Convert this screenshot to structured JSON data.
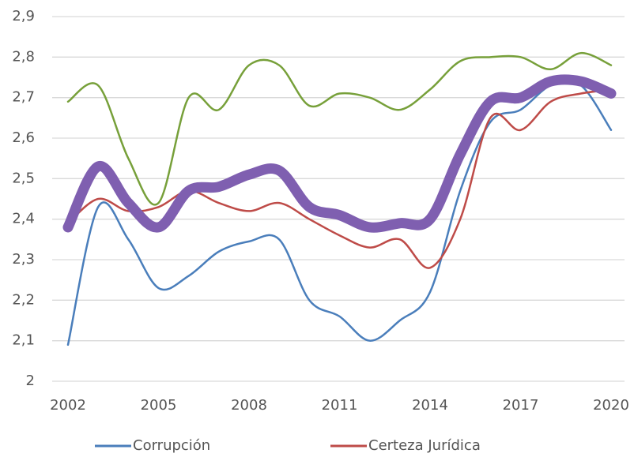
{
  "chart_data": {
    "type": "line",
    "x": [
      2002,
      2003,
      2004,
      2005,
      2006,
      2007,
      2008,
      2009,
      2010,
      2011,
      2012,
      2013,
      2014,
      2015,
      2016,
      2017,
      2018,
      2019,
      2020
    ],
    "xlim": [
      2002,
      2020
    ],
    "xticks": [
      2002,
      2005,
      2008,
      2011,
      2014,
      2017,
      2020
    ],
    "ylim": [
      2,
      2.9
    ],
    "yticks": [
      2,
      {
        "value": 2.1,
        "label": "2,1"
      },
      {
        "value": 2.2,
        "label": "2,2"
      },
      {
        "value": 2.3,
        "label": "2,3"
      },
      {
        "value": 2.4,
        "label": "2,4"
      },
      {
        "value": 2.5,
        "label": "2,5"
      },
      {
        "value": 2.6,
        "label": "2,6"
      },
      {
        "value": 2.7,
        "label": "2,7"
      },
      {
        "value": 2.8,
        "label": "2,8"
      },
      {
        "value": 2.9,
        "label": "2,9"
      }
    ],
    "grid": true,
    "smooth": true,
    "legend": "bottom",
    "series": [
      {
        "name": "Corrupción",
        "color": "#4a7ebb",
        "width": 2.5,
        "values": [
          2.09,
          2.43,
          2.35,
          2.23,
          2.26,
          2.32,
          2.345,
          2.35,
          2.2,
          2.16,
          2.1,
          2.15,
          2.22,
          2.47,
          2.64,
          2.67,
          2.73,
          2.73,
          2.62
        ]
      },
      {
        "name": "Certeza Jurídica",
        "color": "#be4b48",
        "width": 2.5,
        "values": [
          2.39,
          2.45,
          2.42,
          2.43,
          2.47,
          2.44,
          2.42,
          2.44,
          2.4,
          2.36,
          2.33,
          2.35,
          2.28,
          2.4,
          2.65,
          2.62,
          2.69,
          2.71,
          2.72
        ]
      },
      {
        "color": "#77a03a",
        "width": 2.5,
        "values": [
          2.69,
          2.73,
          2.55,
          2.44,
          2.7,
          2.67,
          2.78,
          2.78,
          2.68,
          2.71,
          2.7,
          2.67,
          2.72,
          2.79,
          2.8,
          2.8,
          2.77,
          2.81,
          2.78
        ]
      },
      {
        "color": "#7f5fb0",
        "width": 13,
        "values": [
          2.38,
          2.53,
          2.44,
          2.38,
          2.47,
          2.48,
          2.51,
          2.52,
          2.43,
          2.41,
          2.38,
          2.39,
          2.4,
          2.56,
          2.69,
          2.7,
          2.74,
          2.74,
          2.71
        ]
      }
    ]
  }
}
